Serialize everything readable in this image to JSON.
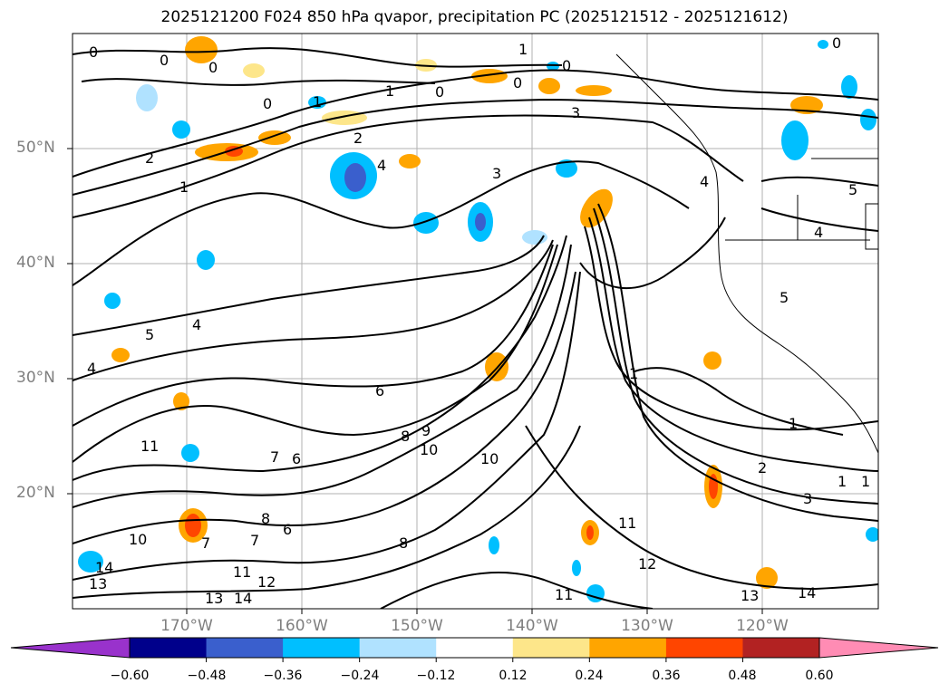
{
  "title": "2025121200 F024 850 hPa qvapor, precipitation PC (2025121512 - 2025121612)",
  "lat_labels": [
    "50°N",
    "40°N",
    "30°N",
    "20°N"
  ],
  "lon_labels": [
    "170°W",
    "160°W",
    "150°W",
    "140°W",
    "130°W",
    "120°W"
  ],
  "colorbar": {
    "ticks": [
      "−0.60",
      "−0.48",
      "−0.36",
      "−0.24",
      "−0.12",
      "0.12",
      "0.24",
      "0.36",
      "0.48",
      "0.60"
    ],
    "colors": [
      "#9932cc",
      "#00008b",
      "#3a5fcd",
      "#00bfff",
      "#b0e2ff",
      "#ffffff",
      "#fde68a",
      "#ffa500",
      "#ff4500",
      "#b22222",
      "#ff8cb4"
    ]
  },
  "contour_labels": [
    "0",
    "0",
    "0",
    "0",
    "0",
    "1",
    "1",
    "1",
    "0",
    "0",
    "0",
    "3",
    "2",
    "2",
    "1",
    "3",
    "4",
    "4",
    "5",
    "4",
    "5",
    "4",
    "5",
    "6",
    "7",
    "6",
    "8",
    "9",
    "10",
    "10",
    "11",
    "1",
    "1",
    "2",
    "3",
    "1",
    "1",
    "6",
    "7",
    "8",
    "8",
    "10",
    "7",
    "11",
    "12",
    "11",
    "13",
    "14",
    "13",
    "14",
    "12",
    "11",
    "13",
    "14",
    "4"
  ]
}
